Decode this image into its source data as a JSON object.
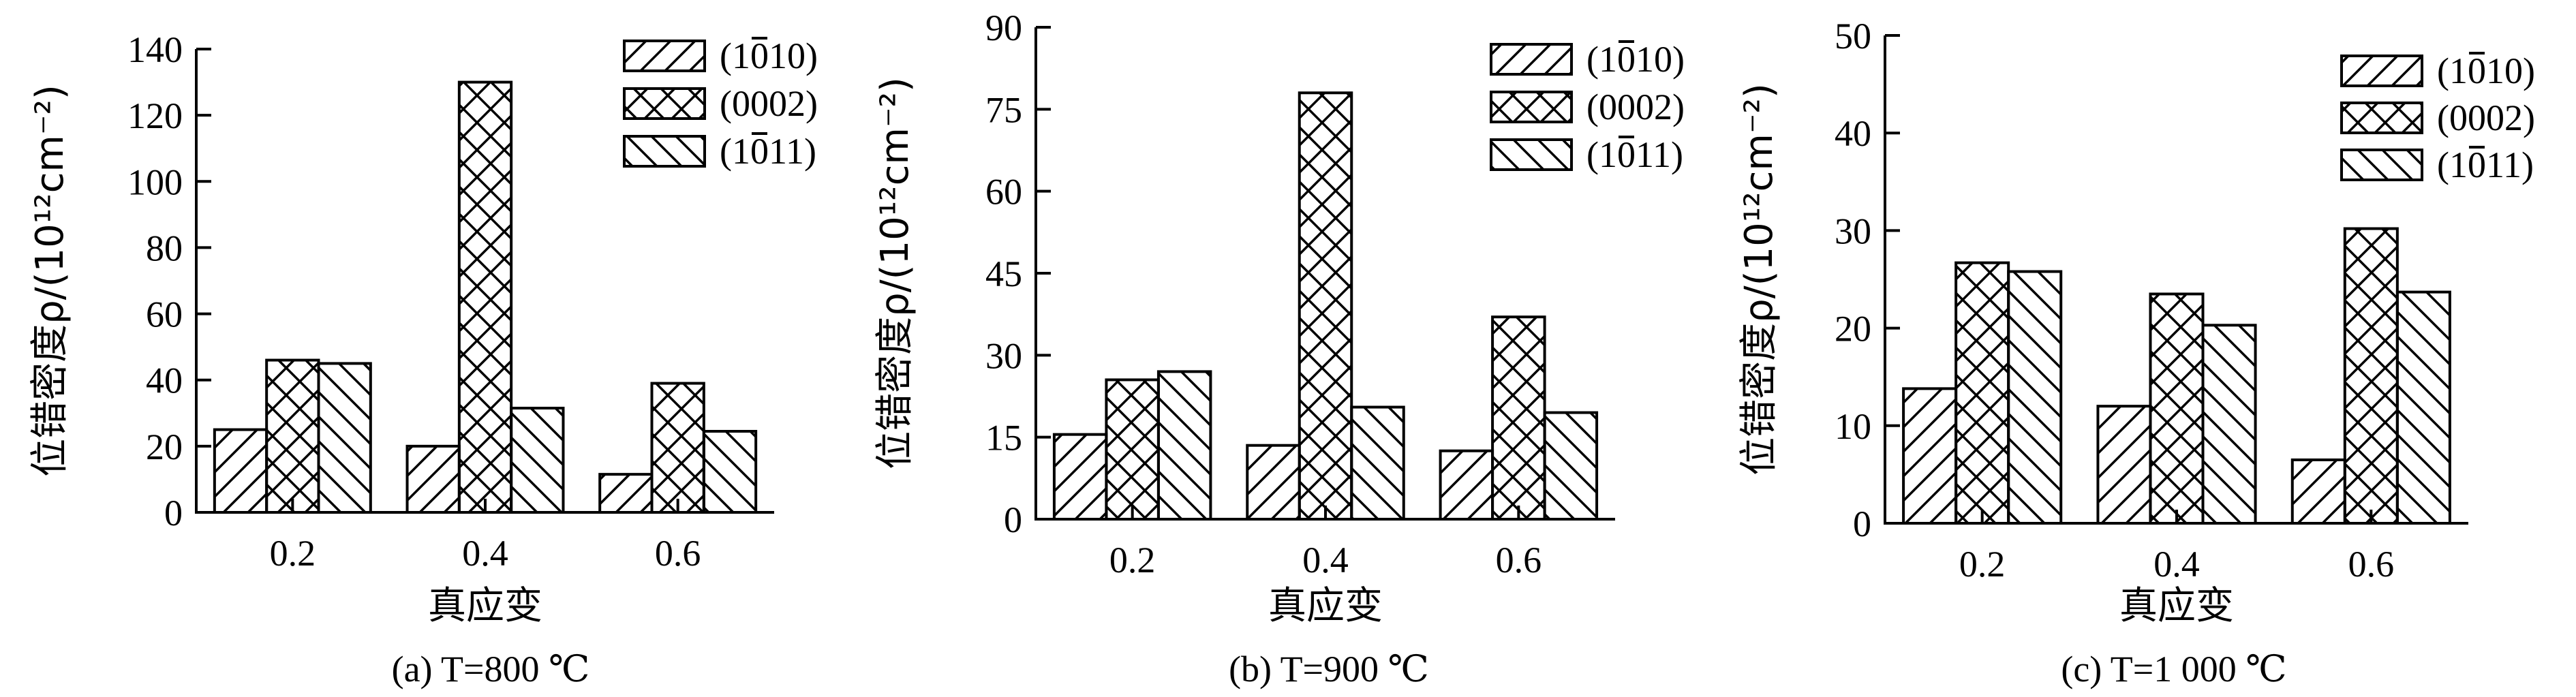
{
  "chart_data": [
    {
      "type": "bar",
      "caption": "(a) T=800 ℃",
      "xlabel": "真应变",
      "ylabel": "位错密度ρ/(10¹²cm⁻²)",
      "categories": [
        "0.2",
        "0.4",
        "0.6"
      ],
      "ylim": [
        0,
        140
      ],
      "yticks": [
        0,
        20,
        40,
        60,
        80,
        100,
        120,
        140
      ],
      "legend_position": "top-right",
      "series": [
        {
          "name": "(1010)",
          "overbar": 2,
          "pattern": "forward-diagonal",
          "values": [
            25,
            20,
            11.5
          ]
        },
        {
          "name": "(0002)",
          "overbar": -1,
          "pattern": "cross-hatch",
          "values": [
            46,
            130,
            39
          ]
        },
        {
          "name": "(1011)",
          "overbar": 2,
          "pattern": "backward-diagonal",
          "values": [
            45,
            31.5,
            24.5
          ]
        }
      ]
    },
    {
      "type": "bar",
      "caption": "(b) T=900 ℃",
      "xlabel": "真应变",
      "ylabel": "位错密度ρ/(10¹²cm⁻²)",
      "categories": [
        "0.2",
        "0.4",
        "0.6"
      ],
      "ylim": [
        0,
        90
      ],
      "yticks": [
        0,
        15,
        30,
        45,
        60,
        75,
        90
      ],
      "legend_position": "top-right",
      "series": [
        {
          "name": "(1010)",
          "overbar": 2,
          "pattern": "forward-diagonal",
          "values": [
            15.5,
            13.5,
            12.5
          ]
        },
        {
          "name": "(0002)",
          "overbar": -1,
          "pattern": "cross-hatch",
          "values": [
            25.5,
            78,
            37
          ]
        },
        {
          "name": "(1011)",
          "overbar": 2,
          "pattern": "backward-diagonal",
          "values": [
            27,
            20.5,
            19.5
          ]
        }
      ]
    },
    {
      "type": "bar",
      "caption": "(c) T=1 000 ℃",
      "xlabel": "真应变",
      "ylabel": "位错密度ρ/(10¹²cm⁻²)",
      "categories": [
        "0.2",
        "0.4",
        "0.6"
      ],
      "ylim": [
        0,
        50
      ],
      "yticks": [
        0,
        10,
        20,
        30,
        40,
        50
      ],
      "legend_position": "top-right",
      "series": [
        {
          "name": "(1010)",
          "overbar": 2,
          "pattern": "forward-diagonal",
          "values": [
            13.8,
            12,
            6.5
          ]
        },
        {
          "name": "(0002)",
          "overbar": -1,
          "pattern": "cross-hatch",
          "values": [
            26.7,
            23.5,
            30.2
          ]
        },
        {
          "name": "(1011)",
          "overbar": 2,
          "pattern": "backward-diagonal",
          "values": [
            25.8,
            20.3,
            23.7
          ]
        }
      ]
    }
  ]
}
